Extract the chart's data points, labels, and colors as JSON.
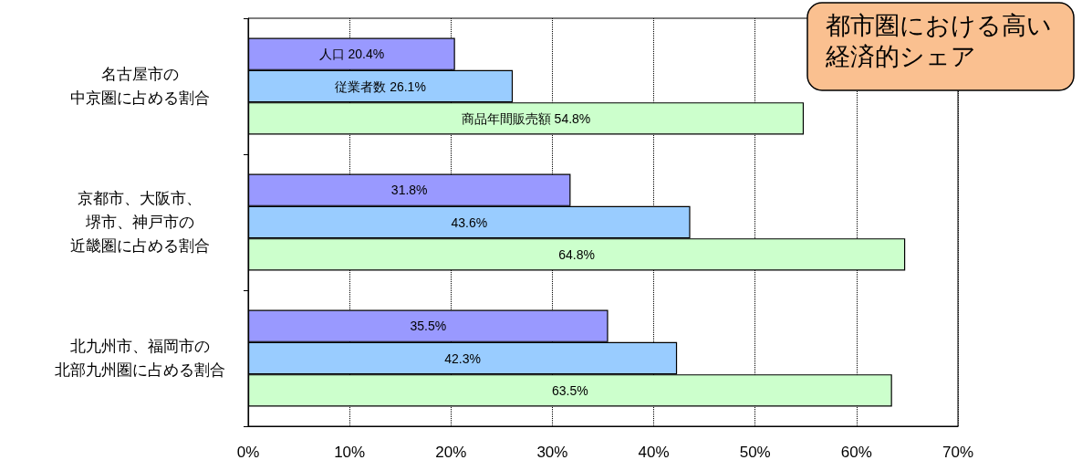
{
  "chart_data": {
    "type": "bar",
    "orientation": "horizontal",
    "title": "都市圏における高い経済的シェア",
    "categories": [
      "名古屋市の中京圏に占める割合",
      "京都市、大阪市、堺市、神戸市の近畿圏に占める割合",
      "北九州市、福岡市の北部九州圏に占める割合"
    ],
    "series": [
      {
        "color": "#9999ff",
        "values": [
          20.4,
          31.8,
          35.5
        ],
        "value_labels": [
          "人口 20.4%",
          "31.8%",
          "35.5%"
        ]
      },
      {
        "color": "#99ccff",
        "values": [
          26.1,
          43.6,
          42.3
        ],
        "value_labels": [
          "従業者数 26.1%",
          "43.6%",
          "42.3%"
        ]
      },
      {
        "color": "#ccffcc",
        "values": [
          54.8,
          64.8,
          63.5
        ],
        "value_labels": [
          "商品年間販売額 54.8%",
          "64.8%",
          "63.5%"
        ]
      }
    ],
    "xlim": [
      0,
      70
    ],
    "xticks": [
      {
        "value": 0,
        "label": "0%"
      },
      {
        "value": 10,
        "label": "10%"
      },
      {
        "value": 20,
        "label": "20%"
      },
      {
        "value": 30,
        "label": "30%"
      },
      {
        "value": 40,
        "label": "40%"
      },
      {
        "value": 50,
        "label": "50%"
      },
      {
        "value": 60,
        "label": "60%"
      },
      {
        "value": 70,
        "label": "70%"
      }
    ],
    "grid": "x"
  }
}
